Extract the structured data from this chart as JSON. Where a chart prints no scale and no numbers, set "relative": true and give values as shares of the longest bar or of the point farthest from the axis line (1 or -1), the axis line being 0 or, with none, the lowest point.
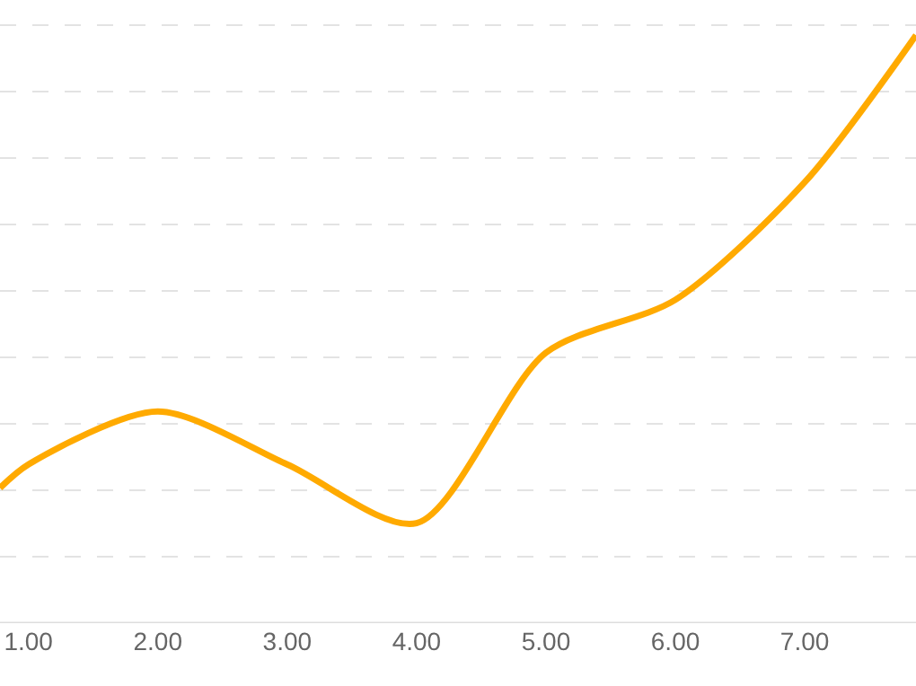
{
  "chart_data": {
    "type": "line",
    "relative": true,
    "x": [
      0.78,
      1,
      2,
      3,
      4,
      5,
      6,
      7,
      7.86
    ],
    "series": [
      {
        "color": "#ffaa00",
        "values": [
          0.23,
          0.27,
          0.36,
          0.27,
          0.17,
          0.46,
          0.55,
          0.75,
          1.0
        ]
      }
    ],
    "xlim": [
      0.78,
      7.86
    ],
    "xticks": [
      {
        "value": 1,
        "label": "1.00"
      },
      {
        "value": 2,
        "label": "2.00"
      },
      {
        "value": 3,
        "label": "3.00"
      },
      {
        "value": 4,
        "label": "4.00"
      },
      {
        "value": 5,
        "label": "5.00"
      },
      {
        "value": 6,
        "label": "6.00"
      },
      {
        "value": 7,
        "label": "7.00"
      }
    ],
    "grid": "y",
    "marker": "none",
    "line_style": "solid"
  }
}
